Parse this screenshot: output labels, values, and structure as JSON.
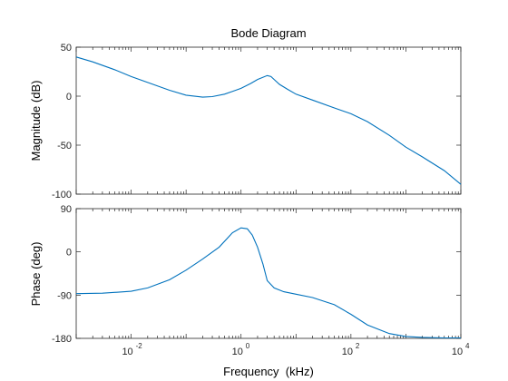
{
  "chart_data": {
    "type": "line",
    "title": "Bode Diagram",
    "xlabel": "Frequency  (kHz)",
    "xscale": "log",
    "xlim": [
      0.001,
      10000
    ],
    "x_tick_bases": [
      "10",
      "10",
      "10",
      "10"
    ],
    "x_tick_exponents": [
      "-2",
      "0",
      "2",
      "4"
    ],
    "x_tick_values": [
      0.01,
      1,
      100,
      10000
    ],
    "color": "#0072BD",
    "grid": false,
    "subplots": [
      {
        "ylabel": "Magnitude (dB)",
        "ylim": [
          -100,
          50
        ],
        "yticks": [
          50,
          0,
          -50,
          -100
        ],
        "ytick_labels": [
          "50",
          "0",
          "-50",
          "-100"
        ],
        "series": [
          {
            "x": [
              0.001,
              0.002,
              0.005,
              0.01,
              0.02,
              0.05,
              0.1,
              0.2,
              0.3,
              0.5,
              0.8,
              1,
              1.5,
              2,
              3,
              3.5,
              4,
              5,
              7,
              10,
              20,
              50,
              100,
              200,
              500,
              1000,
              2000,
              5000,
              10000
            ],
            "y": [
              40,
              35,
              27,
              20,
              14,
              6,
              1,
              -1,
              -0.5,
              2,
              6,
              8,
              13,
              17,
              21,
              20,
              17,
              12,
              7,
              2,
              -4,
              -12,
              -18,
              -26,
              -40,
              -52,
              -62,
              -76,
              -90
            ]
          }
        ]
      },
      {
        "ylabel": "Phase (deg)",
        "ylim": [
          -180,
          90
        ],
        "yticks": [
          90,
          0,
          -90,
          -180
        ],
        "ytick_labels": [
          "90",
          "0",
          "-90",
          "-180"
        ],
        "series": [
          {
            "x": [
              0.001,
              0.003,
              0.01,
              0.02,
              0.05,
              0.1,
              0.2,
              0.4,
              0.7,
              1,
              1.3,
              1.6,
              2,
              2.5,
              3,
              4,
              6,
              10,
              20,
              50,
              100,
              200,
              500,
              1000,
              2000,
              5000,
              10000
            ],
            "y": [
              -87,
              -86,
              -82,
              -75,
              -58,
              -38,
              -15,
              10,
              40,
              50,
              48,
              35,
              10,
              -25,
              -60,
              -75,
              -83,
              -88,
              -95,
              -110,
              -130,
              -152,
              -170,
              -176,
              -178,
              -179,
              -179
            ]
          }
        ]
      }
    ]
  }
}
